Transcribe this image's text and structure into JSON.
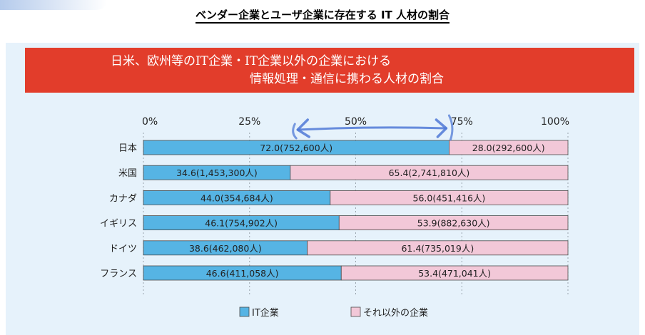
{
  "page_title": "ベンダー企業とユーザ企業に存在する IT 人材の割合",
  "chart_data": {
    "type": "bar",
    "stacked": true,
    "orientation": "horizontal",
    "title_lines": [
      "日米、欧州等のIT企業・IT企業以外の企業における",
      "情報処理・通信に携わる人材の割合"
    ],
    "xlim": [
      0,
      100
    ],
    "x_ticks": [
      "0%",
      "25%",
      "50%",
      "75%",
      "100%"
    ],
    "categories": [
      "日本",
      "米国",
      "カナダ",
      "イギリス",
      "ドイツ",
      "フランス"
    ],
    "series": [
      {
        "name": "IT企業",
        "color": "#56b4e4",
        "values": [
          72.0,
          34.6,
          44.0,
          46.1,
          38.6,
          46.6
        ],
        "labels": [
          "72.0(752,600人)",
          "34.6(1,453,300人)",
          "44.0(354,684人)",
          "46.1(754,902人)",
          "38.6(462,080人)",
          "46.6(411,058人)"
        ]
      },
      {
        "name": "それ以外の企業",
        "color": "#f2c8d8",
        "values": [
          28.0,
          65.4,
          56.0,
          53.9,
          61.4,
          53.4
        ],
        "labels": [
          "28.0(292,600人)",
          "65.4(2,741,810人)",
          "56.0(451,416人)",
          "53.9(882,630人)",
          "61.4(735,019人)",
          "53.4(471,041人)"
        ]
      }
    ],
    "legend_position": "bottom",
    "grid": "dashed vertical at tick marks"
  },
  "annotation": {
    "type": "handwritten double-headed arrow",
    "color": "#4f79d6",
    "from_percent": 35,
    "to_percent": 72
  }
}
